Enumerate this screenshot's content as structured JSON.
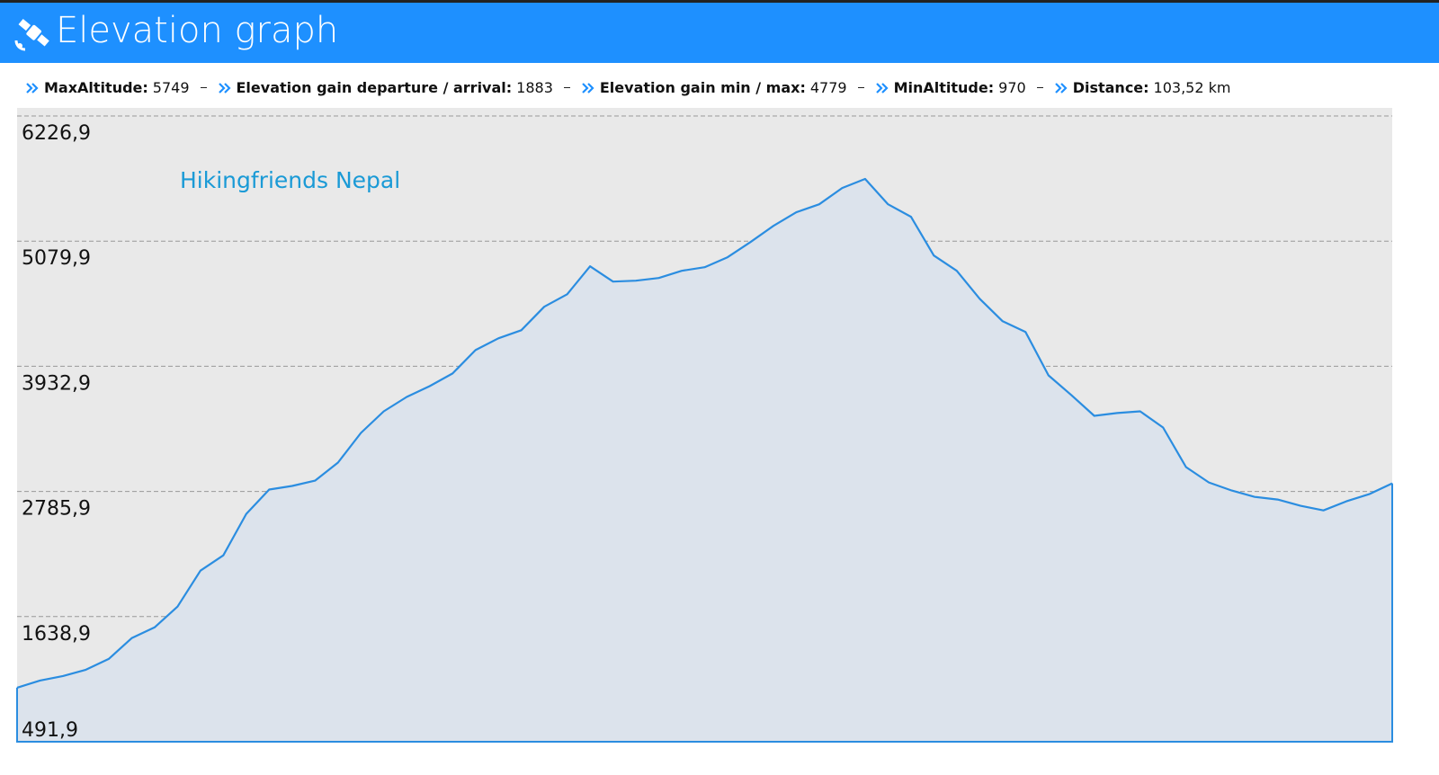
{
  "header": {
    "title": "Elevation graph"
  },
  "stats": [
    {
      "label": "MaxAltitude:",
      "value": "5749"
    },
    {
      "label": "Elevation gain departure / arrival:",
      "value": "1883"
    },
    {
      "label": "Elevation gain min / max:",
      "value": "4779"
    },
    {
      "label": "MinAltitude:",
      "value": "970"
    },
    {
      "label": "Distance:",
      "value": "103,52 km"
    }
  ],
  "chart_data": {
    "type": "area",
    "annotation": "Hikingfriends Nepal",
    "color": "#2b8de0",
    "fill": "#dce3ec",
    "grid": true,
    "ylim": [
      491.9,
      6301
    ],
    "yticks": [
      {
        "value": 491.9,
        "label": "491,9"
      },
      {
        "value": 1638.9,
        "label": "1638,9"
      },
      {
        "value": 2785.9,
        "label": "2785,9"
      },
      {
        "value": 3932.9,
        "label": "3932,9"
      },
      {
        "value": 5079.9,
        "label": "5079,9"
      },
      {
        "value": 6226.9,
        "label": "6226,9"
      }
    ],
    "values": [
      987,
      1053,
      1094,
      1152,
      1251,
      1441,
      1540,
      1730,
      2060,
      2200,
      2580,
      2803,
      2836,
      2885,
      3050,
      3322,
      3520,
      3652,
      3751,
      3867,
      4081,
      4189,
      4263,
      4478,
      4593,
      4849,
      4709,
      4717,
      4742,
      4808,
      4841,
      4932,
      5072,
      5220,
      5344,
      5418,
      5567,
      5650,
      5418,
      5303,
      4948,
      4808,
      4552,
      4346,
      4247,
      3850,
      3669,
      3479,
      3504,
      3520,
      3372,
      3009,
      2868,
      2794,
      2736,
      2712,
      2654,
      2612,
      2695,
      2761,
      2860
    ]
  }
}
